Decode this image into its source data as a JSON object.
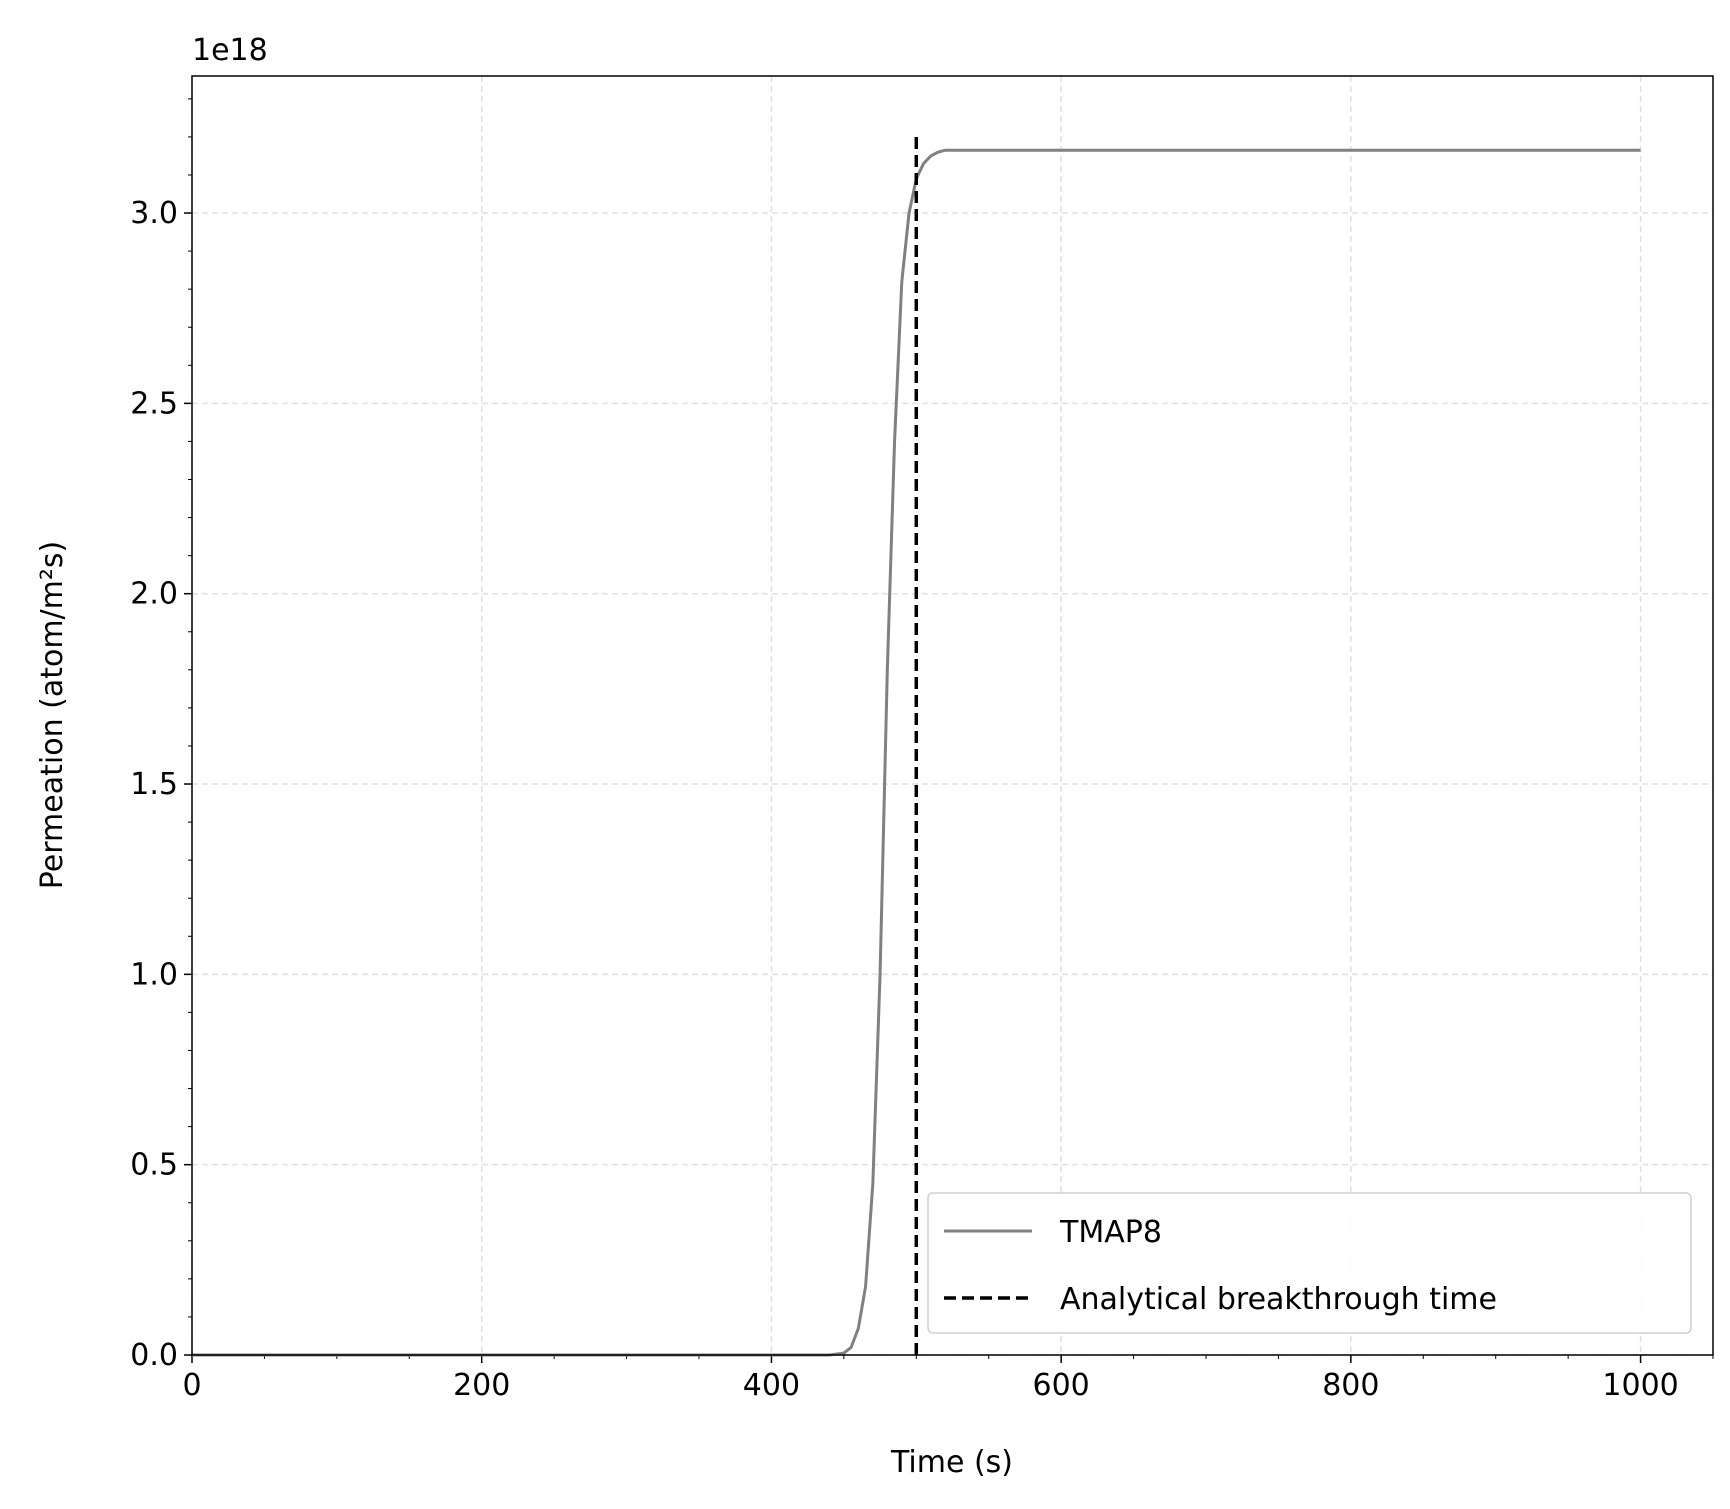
{
  "chart_data": {
    "type": "line",
    "xlabel": "Time (s)",
    "ylabel": "Permeation (atom/m²s)",
    "offset_label": "1e18",
    "xlim": [
      0,
      1050
    ],
    "ylim": [
      0,
      3.36
    ],
    "xticks": [
      0,
      200,
      400,
      600,
      800,
      1000
    ],
    "yticks": [
      {
        "value": 0,
        "label": "0.0"
      },
      0.5,
      {
        "value": 1,
        "label": "1.0"
      },
      1.5,
      {
        "value": 2,
        "label": "2.0"
      },
      2.5,
      {
        "value": 3,
        "label": "3.0"
      }
    ],
    "xminorticks": [
      50,
      100,
      150,
      250,
      300,
      350,
      450,
      500,
      550,
      650,
      700,
      750,
      850,
      900,
      950,
      1050
    ],
    "yminorticks": [
      0.1,
      0.2,
      0.3,
      0.4,
      0.6,
      0.7,
      0.8,
      0.9,
      1.1,
      1.2,
      1.3,
      1.4,
      1.6,
      1.7,
      1.8,
      1.9,
      2.1,
      2.2,
      2.3,
      2.4,
      2.6,
      2.7,
      2.8,
      2.9,
      3.1,
      3.2,
      3.3
    ],
    "grid": true,
    "legend": "lower right",
    "series": [
      {
        "name": "TMAP8",
        "color": "#808080",
        "dash": "solid",
        "x": [
          0,
          100,
          200,
          300,
          400,
          440,
          450,
          455,
          460,
          465,
          470,
          475,
          480,
          485,
          490,
          495,
          500,
          505,
          510,
          515,
          520,
          530,
          1000
        ],
        "values": [
          0,
          0,
          0,
          0,
          0,
          0,
          0.005,
          0.02,
          0.07,
          0.18,
          0.45,
          1.0,
          1.8,
          2.4,
          2.82,
          3.0,
          3.09,
          3.13,
          3.15,
          3.16,
          3.165,
          3.165,
          3.165
        ]
      },
      {
        "name": "Analytical breakthrough time",
        "color": "#000000",
        "dash": "dashed",
        "x": [
          500,
          500
        ],
        "values": [
          0,
          3.2
        ]
      }
    ]
  }
}
